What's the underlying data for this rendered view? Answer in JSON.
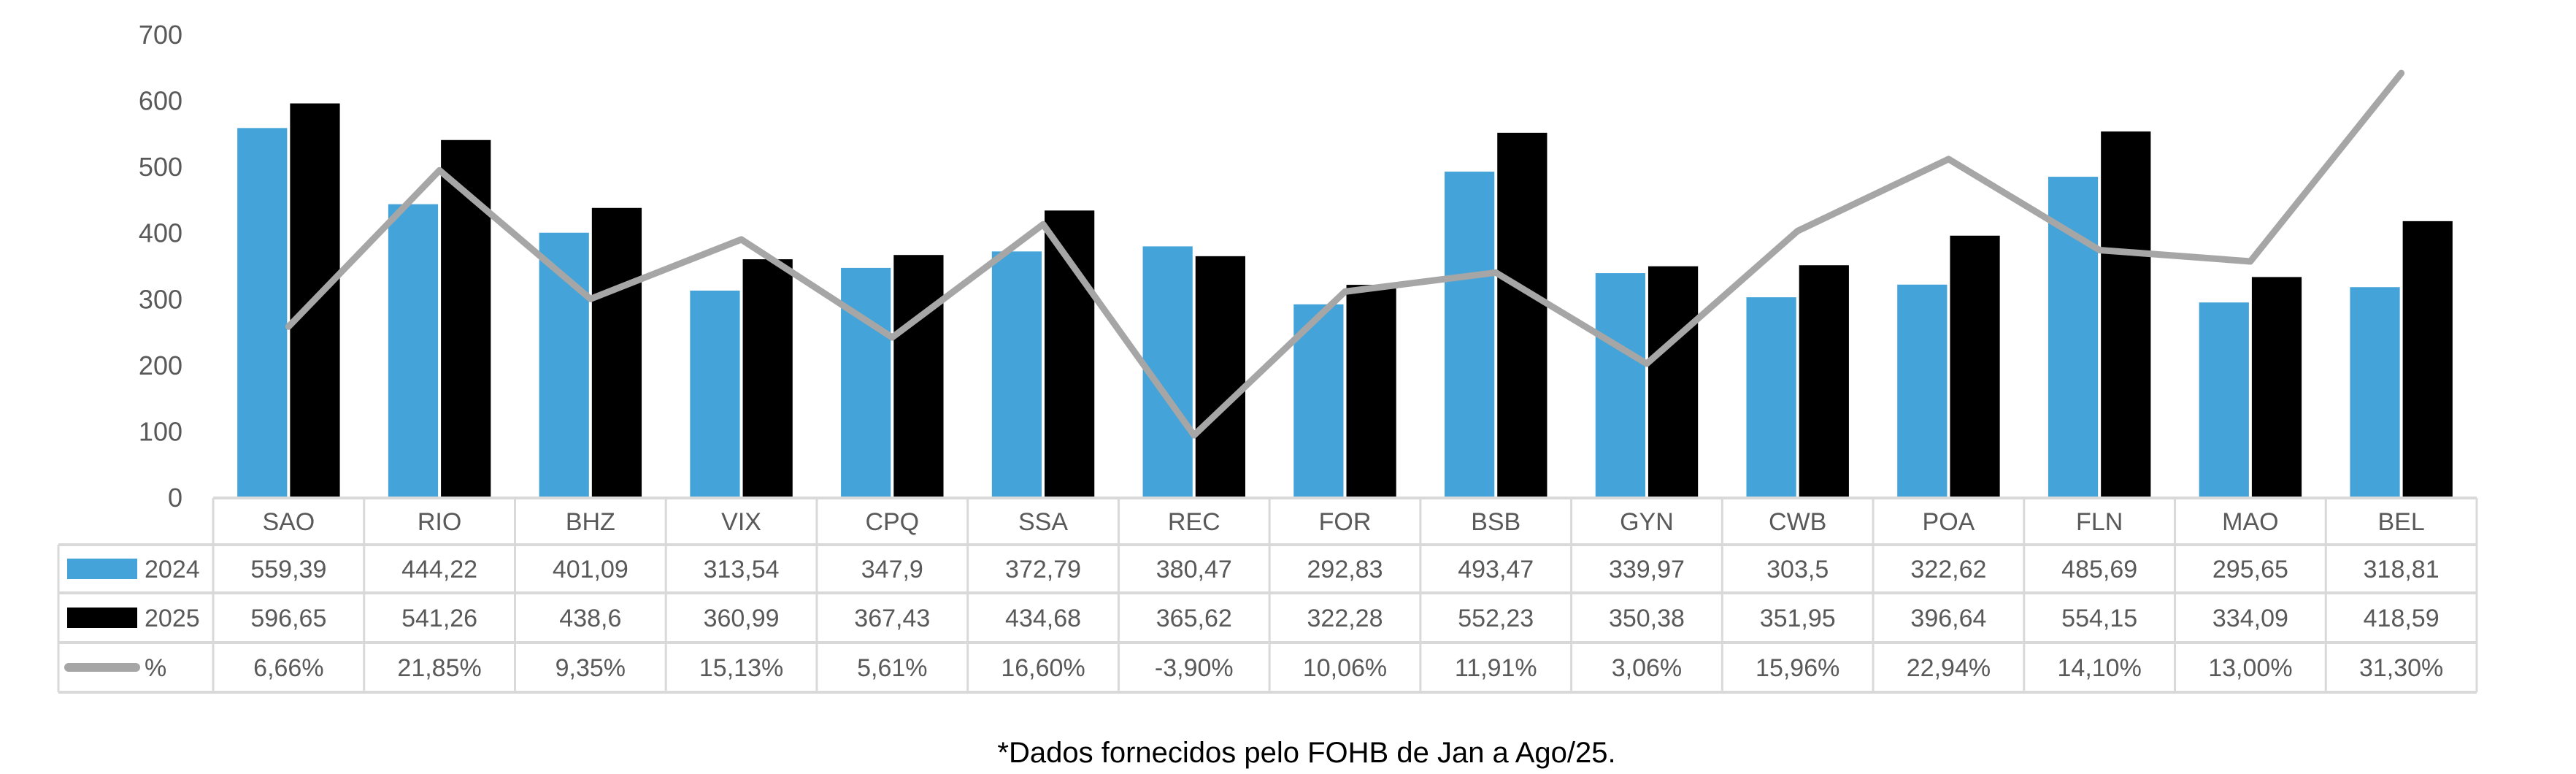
{
  "chart_data": {
    "type": "bar+line",
    "categories": [
      "SAO",
      "RIO",
      "BHZ",
      "VIX",
      "CPQ",
      "SSA",
      "REC",
      "FOR",
      "BSB",
      "GYN",
      "CWB",
      "POA",
      "FLN",
      "MAO",
      "BEL"
    ],
    "series": [
      {
        "name": "2024",
        "type": "bar",
        "color": "#44A3D8",
        "axis": "primary",
        "values": [
          559.39,
          444.22,
          401.09,
          313.54,
          347.9,
          372.79,
          380.47,
          292.83,
          493.47,
          339.97,
          303.5,
          322.62,
          485.69,
          295.65,
          318.81
        ],
        "labels": [
          "559,39",
          "444,22",
          "401,09",
          "313,54",
          "347,9",
          "372,79",
          "380,47",
          "292,83",
          "493,47",
          "339,97",
          "303,5",
          "322,62",
          "485,69",
          "295,65",
          "318,81"
        ]
      },
      {
        "name": "2025",
        "type": "bar",
        "color": "#000000",
        "axis": "primary",
        "values": [
          596.65,
          541.26,
          438.6,
          360.99,
          367.43,
          434.68,
          365.62,
          322.28,
          552.23,
          350.38,
          351.95,
          396.64,
          554.15,
          334.09,
          418.59
        ],
        "labels": [
          "596,65",
          "541,26",
          "438,6",
          "360,99",
          "367,43",
          "434,68",
          "365,62",
          "322,28",
          "552,23",
          "350,38",
          "351,95",
          "396,64",
          "554,15",
          "334,09",
          "418,59"
        ]
      },
      {
        "name": "%",
        "type": "line",
        "color": "#A6A6A6",
        "axis": "secondary",
        "values": [
          6.66,
          21.85,
          9.35,
          15.13,
          5.61,
          16.6,
          -3.9,
          10.06,
          11.91,
          3.06,
          15.96,
          22.94,
          14.1,
          13.0,
          31.3
        ],
        "labels": [
          "6,66%",
          "21,85%",
          "9,35%",
          "15,13%",
          "5,61%",
          "16,60%",
          "-3,90%",
          "10,06%",
          "11,91%",
          "3,06%",
          "15,96%",
          "22,94%",
          "14,10%",
          "13,00%",
          "31,30%"
        ]
      }
    ],
    "yticks": [
      "0",
      "100",
      "200",
      "300",
      "400",
      "500",
      "600",
      "700"
    ],
    "ylim": [
      0,
      700
    ],
    "y2lim": [
      -10,
      35
    ],
    "y2_visible": false,
    "grid": false,
    "legend": "data-table",
    "footnote": "*Dados fornecidos pelo FOHB de Jan a Ago/25."
  }
}
